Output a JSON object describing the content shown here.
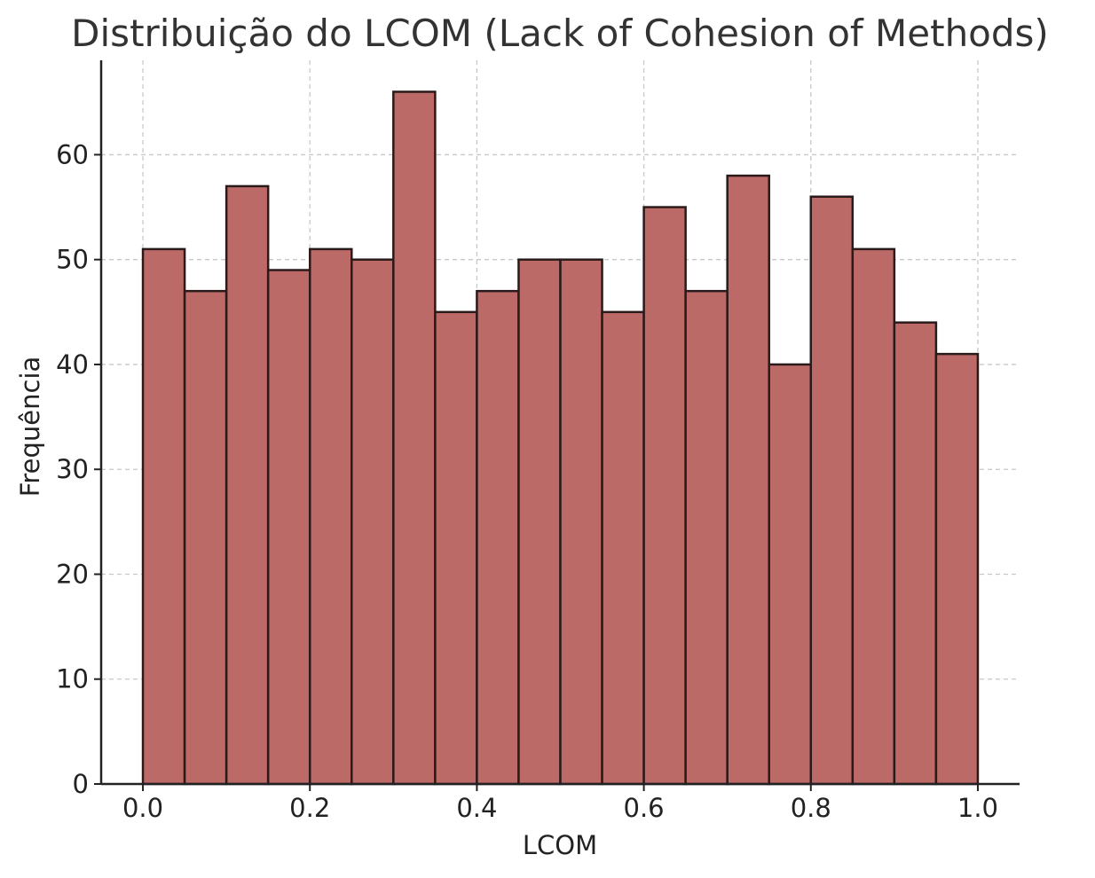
{
  "chart_data": {
    "type": "bar",
    "title": "Distribuição do LCOM (Lack of Cohesion of Methods)",
    "xlabel": "LCOM",
    "ylabel": "Frequência",
    "bin_edges": [
      0.0,
      0.05,
      0.1,
      0.15,
      0.2,
      0.25,
      0.3,
      0.35,
      0.4,
      0.45,
      0.5,
      0.55,
      0.6,
      0.65,
      0.7,
      0.75,
      0.8,
      0.85,
      0.9,
      0.95,
      1.0
    ],
    "values": [
      51,
      47,
      57,
      49,
      51,
      50,
      66,
      45,
      47,
      50,
      50,
      45,
      55,
      47,
      58,
      40,
      56,
      51,
      44,
      41
    ],
    "xlim": [
      -0.05,
      1.05
    ],
    "ylim": [
      0,
      69
    ],
    "x_ticks": [
      "0.0",
      "0.2",
      "0.4",
      "0.6",
      "0.8",
      "1.0"
    ],
    "y_ticks": [
      "0",
      "10",
      "20",
      "30",
      "40",
      "50",
      "60"
    ],
    "grid": true,
    "bar_color": "#bc6a67",
    "edge_color": "#2b1a1a"
  }
}
